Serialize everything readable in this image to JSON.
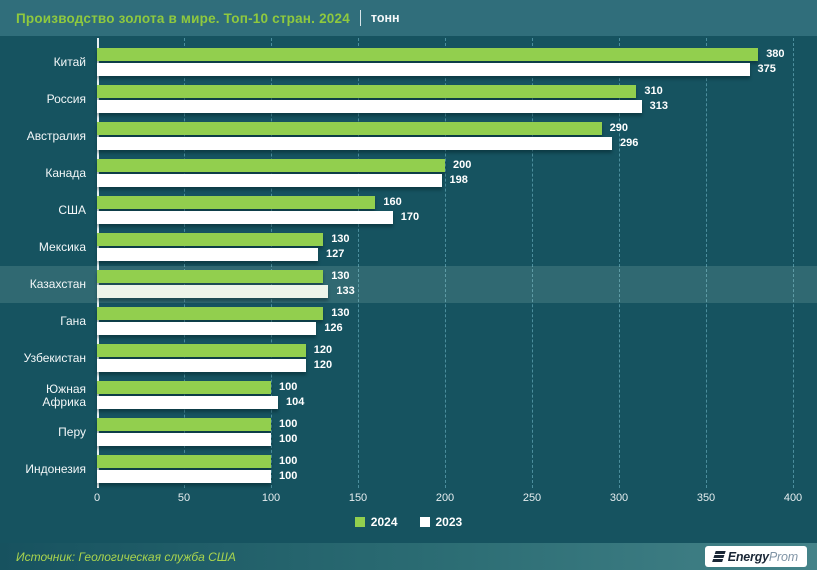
{
  "header": {
    "title": "Производство золота в мире. Топ-10 стран. 2024",
    "units": "тонн"
  },
  "chart_data": {
    "type": "bar",
    "orientation": "horizontal",
    "title": "Производство золота в мире. Топ-10 стран. 2024",
    "value_units": "тонн",
    "categories": [
      "Китай",
      "Россия",
      "Австралия",
      "Канада",
      "США",
      "Мексика",
      "Казахстан",
      "Гана",
      "Узбекистан",
      "Южная Африка",
      "Перу",
      "Индонезия"
    ],
    "series": [
      {
        "name": "2024",
        "color": "#92cf4e",
        "values": [
          380,
          310,
          290,
          200,
          160,
          130,
          130,
          130,
          120,
          100,
          100,
          100
        ]
      },
      {
        "name": "2023",
        "color": "#ffffff",
        "values": [
          375,
          313,
          296,
          198,
          170,
          127,
          133,
          126,
          120,
          104,
          100,
          100
        ]
      }
    ],
    "x_ticks": [
      0,
      50,
      100,
      150,
      200,
      250,
      300,
      350,
      400
    ],
    "xlim": [
      0,
      400
    ],
    "grid": "dashed-vertical",
    "legend_position": "bottom",
    "highlighted_category": "Казахстан"
  },
  "legend": {
    "items": [
      {
        "label": "2024",
        "color": "#92cf4e"
      },
      {
        "label": "2023",
        "color": "#ffffff"
      }
    ]
  },
  "footer": {
    "source": "Источник: Геологическая служба США",
    "logo_energy": "Energy",
    "logo_prom": "Prom"
  },
  "colors": {
    "background": "#165360",
    "header_background": "#306e7b",
    "title_green": "#8fc93e",
    "bar_2024": "#92cf4e",
    "bar_2023": "#ffffff",
    "highlighted_bar_2023": "#eef4ea",
    "highlight_band": "rgba(214,238,224,0.14)",
    "gridline": "rgba(120,192,208,0.55)",
    "source_text": "#a9d44e"
  }
}
